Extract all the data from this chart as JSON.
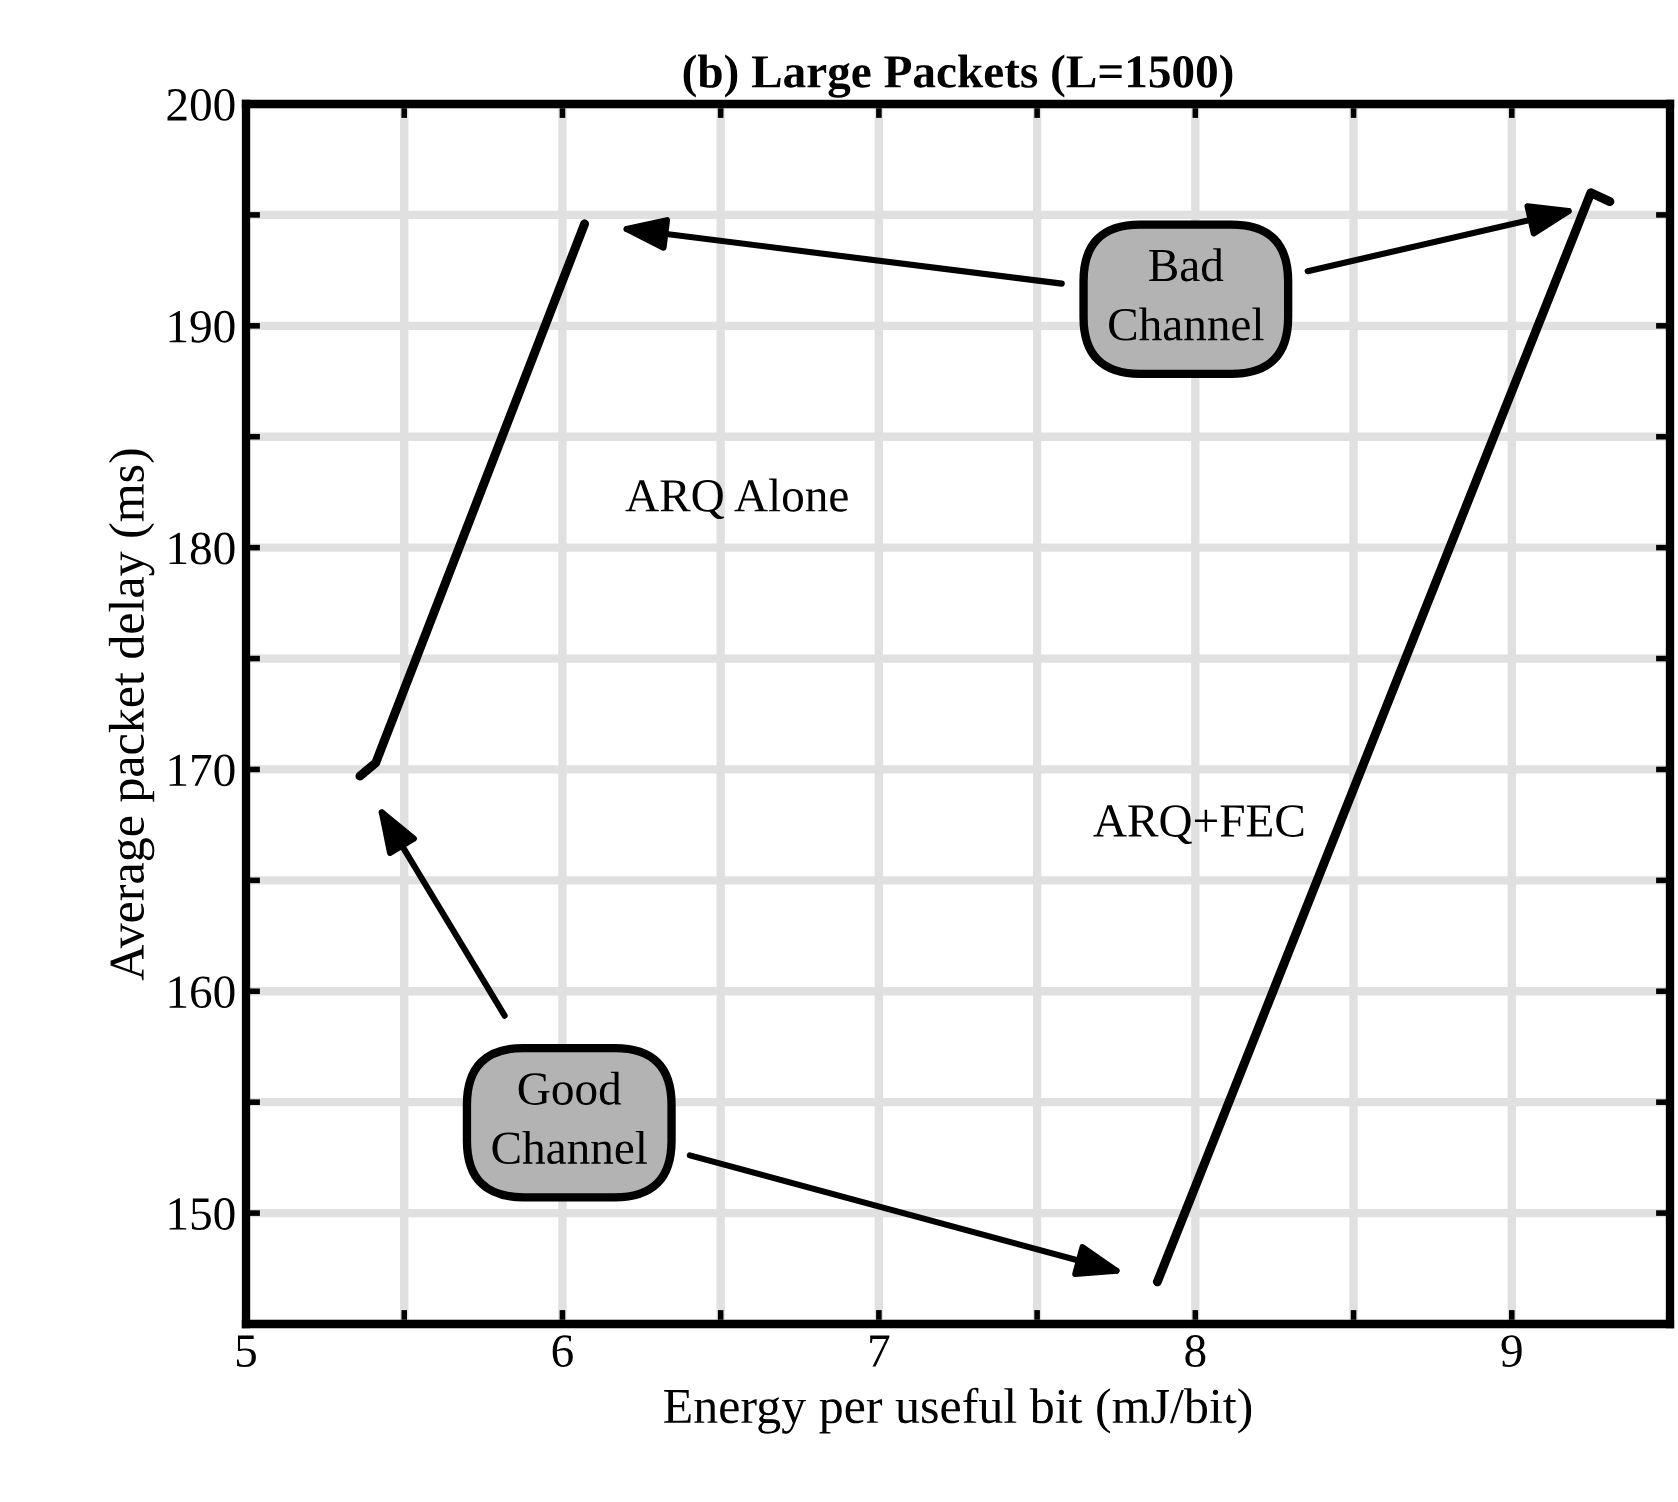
{
  "chart_data": {
    "type": "line",
    "title": "(b) Large Packets (L=1500)",
    "xlabel": "Energy per useful bit (mJ/bit)",
    "ylabel": "Average packet delay (ms)",
    "series": [
      {
        "name": "ARQ Alone",
        "color": "#000000",
        "x": [
          5.36,
          5.41,
          6.07
        ],
        "values": [
          169.7,
          170.3,
          194.6
        ]
      },
      {
        "name": "ARQ+FEC",
        "color": "#000000",
        "x": [
          7.88,
          9.25,
          9.31
        ],
        "values": [
          146.9,
          196.0,
          195.6
        ]
      }
    ],
    "annotations": [
      "Good\nChannel",
      "Bad\nChannel"
    ],
    "xlim": [
      5,
      9.5
    ],
    "ylim": [
      145,
      200
    ],
    "xticks": [
      5,
      {
        "value": 5.5,
        "label": null
      },
      6,
      {
        "value": 6.5,
        "label": null
      },
      7,
      {
        "value": 7.5,
        "label": null
      },
      8,
      {
        "value": 8.5,
        "label": null
      },
      9
    ],
    "yticks": [
      {
        "value": 145,
        "label": null
      },
      150,
      {
        "value": 155,
        "label": null
      },
      160,
      {
        "value": 165,
        "label": null
      },
      170,
      {
        "value": 175,
        "label": null
      },
      180,
      {
        "value": 185,
        "label": null
      },
      190,
      {
        "value": 195,
        "label": null
      },
      200
    ],
    "grid": true,
    "legend": false,
    "marker": "none",
    "line_style": "solid"
  }
}
